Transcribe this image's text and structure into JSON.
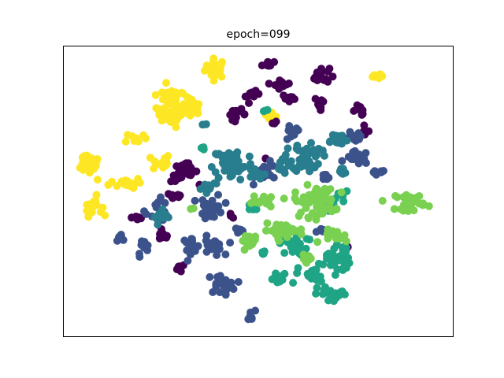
{
  "chart_data": {
    "type": "scatter",
    "title": "epoch=099",
    "xlabel": "",
    "ylabel": "",
    "xlim": [
      0,
      100
    ],
    "ylim": [
      0,
      100
    ],
    "grid": false,
    "axis_ticks": false,
    "marker_radius": 5,
    "series": [
      {
        "color": "#fde725",
        "clusters": [
          {
            "cx": 39.0,
            "cy": 92.5,
            "sx": 1.8,
            "sy": 2.2,
            "n": 28
          },
          {
            "cx": 27.5,
            "cy": 79.0,
            "sx": 2.5,
            "sy": 4.5,
            "n": 55
          },
          {
            "cx": 33.0,
            "cy": 78.5,
            "sx": 1.5,
            "sy": 2.5,
            "n": 22
          },
          {
            "cx": 18.5,
            "cy": 68.5,
            "sx": 1.8,
            "sy": 1.2,
            "n": 10
          },
          {
            "cx": 25.0,
            "cy": 60.0,
            "sx": 1.6,
            "sy": 2.0,
            "n": 14
          },
          {
            "cx": 6.5,
            "cy": 60.0,
            "sx": 2.2,
            "sy": 2.8,
            "n": 30
          },
          {
            "cx": 16.0,
            "cy": 53.0,
            "sx": 2.8,
            "sy": 1.2,
            "n": 22
          },
          {
            "cx": 7.5,
            "cy": 45.0,
            "sx": 1.5,
            "sy": 2.2,
            "n": 16
          },
          {
            "cx": 53.5,
            "cy": 75.5,
            "sx": 1.2,
            "sy": 1.0,
            "n": 8
          },
          {
            "cx": 80.5,
            "cy": 90.0,
            "sx": 1.0,
            "sy": 0.8,
            "n": 8
          }
        ]
      },
      {
        "color": "#440154",
        "clusters": [
          {
            "cx": 52.5,
            "cy": 94.0,
            "sx": 1.0,
            "sy": 1.0,
            "n": 8
          },
          {
            "cx": 66.0,
            "cy": 90.0,
            "sx": 1.5,
            "sy": 1.8,
            "n": 22
          },
          {
            "cx": 56.0,
            "cy": 87.0,
            "sx": 1.5,
            "sy": 1.0,
            "n": 12
          },
          {
            "cx": 48.5,
            "cy": 83.0,
            "sx": 1.2,
            "sy": 1.0,
            "n": 8
          },
          {
            "cx": 58.0,
            "cy": 82.0,
            "sx": 1.3,
            "sy": 1.0,
            "n": 12
          },
          {
            "cx": 66.0,
            "cy": 80.5,
            "sx": 1.0,
            "sy": 1.5,
            "n": 10
          },
          {
            "cx": 44.5,
            "cy": 76.5,
            "sx": 1.6,
            "sy": 1.2,
            "n": 10
          },
          {
            "cx": 76.0,
            "cy": 78.0,
            "sx": 1.2,
            "sy": 1.2,
            "n": 10
          },
          {
            "cx": 77.0,
            "cy": 71.0,
            "sx": 1.0,
            "sy": 1.0,
            "n": 6
          },
          {
            "cx": 31.0,
            "cy": 56.5,
            "sx": 2.3,
            "sy": 2.2,
            "n": 34
          },
          {
            "cx": 28.5,
            "cy": 48.5,
            "sx": 1.5,
            "sy": 1.0,
            "n": 10
          },
          {
            "cx": 19.0,
            "cy": 41.0,
            "sx": 1.0,
            "sy": 0.8,
            "n": 8
          },
          {
            "cx": 25.5,
            "cy": 34.5,
            "sx": 1.2,
            "sy": 1.0,
            "n": 8
          },
          {
            "cx": 30.0,
            "cy": 23.5,
            "sx": 1.0,
            "sy": 1.0,
            "n": 8
          },
          {
            "cx": 43.0,
            "cy": 41.5,
            "sx": 0.8,
            "sy": 0.5,
            "n": 3
          },
          {
            "cx": 54.0,
            "cy": 73.5,
            "sx": 0.5,
            "sy": 0.5,
            "n": 3
          },
          {
            "cx": 51.5,
            "cy": 61.5,
            "sx": 0.5,
            "sy": 0.5,
            "n": 2
          },
          {
            "cx": 73.0,
            "cy": 31.0,
            "sx": 0.5,
            "sy": 0.5,
            "n": 2
          }
        ]
      },
      {
        "color": "#3b528b",
        "clusters": [
          {
            "cx": 58.5,
            "cy": 70.0,
            "sx": 1.5,
            "sy": 1.8,
            "n": 12
          },
          {
            "cx": 75.0,
            "cy": 68.5,
            "sx": 1.4,
            "sy": 1.8,
            "n": 12
          },
          {
            "cx": 75.5,
            "cy": 61.5,
            "sx": 2.0,
            "sy": 1.5,
            "n": 14
          },
          {
            "cx": 80.5,
            "cy": 56.0,
            "sx": 1.5,
            "sy": 1.0,
            "n": 8
          },
          {
            "cx": 52.5,
            "cy": 56.5,
            "sx": 2.2,
            "sy": 2.2,
            "n": 16
          },
          {
            "cx": 38.0,
            "cy": 44.5,
            "sx": 2.0,
            "sy": 3.0,
            "n": 24
          },
          {
            "cx": 24.0,
            "cy": 43.5,
            "sx": 2.0,
            "sy": 2.5,
            "n": 16
          },
          {
            "cx": 15.0,
            "cy": 34.5,
            "sx": 1.0,
            "sy": 1.0,
            "n": 8
          },
          {
            "cx": 20.5,
            "cy": 30.5,
            "sx": 1.0,
            "sy": 2.0,
            "n": 12
          },
          {
            "cx": 32.5,
            "cy": 31.5,
            "sx": 1.5,
            "sy": 1.8,
            "n": 14
          },
          {
            "cx": 38.0,
            "cy": 31.0,
            "sx": 2.0,
            "sy": 2.2,
            "n": 22
          },
          {
            "cx": 40.5,
            "cy": 18.0,
            "sx": 2.5,
            "sy": 2.2,
            "n": 22
          },
          {
            "cx": 48.0,
            "cy": 7.0,
            "sx": 0.8,
            "sy": 1.2,
            "n": 8
          },
          {
            "cx": 45.0,
            "cy": 36.5,
            "sx": 1.0,
            "sy": 1.0,
            "n": 6
          },
          {
            "cx": 67.0,
            "cy": 54.5,
            "sx": 1.0,
            "sy": 1.0,
            "n": 6
          },
          {
            "cx": 66.5,
            "cy": 36.0,
            "sx": 1.0,
            "sy": 1.0,
            "n": 6
          }
        ]
      },
      {
        "color": "#287d8e",
        "clusters": [
          {
            "cx": 43.5,
            "cy": 59.5,
            "sx": 3.5,
            "sy": 4.0,
            "n": 60
          },
          {
            "cx": 37.0,
            "cy": 52.0,
            "sx": 2.0,
            "sy": 1.2,
            "n": 12
          },
          {
            "cx": 25.5,
            "cy": 41.0,
            "sx": 1.5,
            "sy": 2.0,
            "n": 14
          },
          {
            "cx": 62.5,
            "cy": 62.0,
            "sx": 2.5,
            "sy": 3.5,
            "n": 45
          },
          {
            "cx": 70.0,
            "cy": 68.0,
            "sx": 2.0,
            "sy": 1.5,
            "n": 18
          },
          {
            "cx": 71.5,
            "cy": 57.0,
            "sx": 1.0,
            "sy": 1.5,
            "n": 8
          },
          {
            "cx": 55.5,
            "cy": 58.5,
            "sx": 1.5,
            "sy": 1.5,
            "n": 10
          },
          {
            "cx": 49.0,
            "cy": 55.5,
            "sx": 1.5,
            "sy": 1.5,
            "n": 10
          },
          {
            "cx": 36.0,
            "cy": 73.0,
            "sx": 0.5,
            "sy": 0.5,
            "n": 2
          }
        ]
      },
      {
        "color": "#20a486",
        "clusters": [
          {
            "cx": 59.0,
            "cy": 31.5,
            "sx": 2.5,
            "sy": 2.5,
            "n": 24
          },
          {
            "cx": 70.5,
            "cy": 27.0,
            "sx": 2.0,
            "sy": 3.5,
            "n": 34
          },
          {
            "cx": 64.0,
            "cy": 21.0,
            "sx": 2.5,
            "sy": 2.5,
            "n": 22
          },
          {
            "cx": 69.0,
            "cy": 14.5,
            "sx": 2.5,
            "sy": 2.0,
            "n": 20
          },
          {
            "cx": 55.5,
            "cy": 19.5,
            "sx": 2.0,
            "sy": 1.5,
            "n": 14
          },
          {
            "cx": 68.0,
            "cy": 44.5,
            "sx": 1.8,
            "sy": 1.0,
            "n": 12
          },
          {
            "cx": 51.5,
            "cy": 28.5,
            "sx": 1.0,
            "sy": 1.0,
            "n": 6
          },
          {
            "cx": 48.5,
            "cy": 44.5,
            "sx": 1.0,
            "sy": 1.0,
            "n": 6
          },
          {
            "cx": 35.5,
            "cy": 65.0,
            "sx": 0.5,
            "sy": 0.5,
            "n": 3
          },
          {
            "cx": 52.0,
            "cy": 78.0,
            "sx": 0.5,
            "sy": 0.5,
            "n": 3
          },
          {
            "cx": 71.5,
            "cy": 48.5,
            "sx": 1.0,
            "sy": 1.0,
            "n": 6
          }
        ]
      },
      {
        "color": "#7ad151",
        "clusters": [
          {
            "cx": 64.5,
            "cy": 46.5,
            "sx": 3.5,
            "sy": 3.5,
            "n": 70
          },
          {
            "cx": 56.5,
            "cy": 36.5,
            "sx": 3.5,
            "sy": 1.5,
            "n": 32
          },
          {
            "cx": 51.5,
            "cy": 46.5,
            "sx": 2.0,
            "sy": 1.5,
            "n": 16
          },
          {
            "cx": 48.5,
            "cy": 33.0,
            "sx": 2.0,
            "sy": 1.5,
            "n": 16
          },
          {
            "cx": 70.5,
            "cy": 34.5,
            "sx": 2.5,
            "sy": 1.5,
            "n": 16
          },
          {
            "cx": 89.0,
            "cy": 46.5,
            "sx": 2.5,
            "sy": 2.0,
            "n": 30
          },
          {
            "cx": 62.0,
            "cy": 26.5,
            "sx": 1.2,
            "sy": 1.0,
            "n": 8
          },
          {
            "cx": 33.0,
            "cy": 44.0,
            "sx": 0.5,
            "sy": 0.5,
            "n": 2
          }
        ]
      }
    ]
  }
}
